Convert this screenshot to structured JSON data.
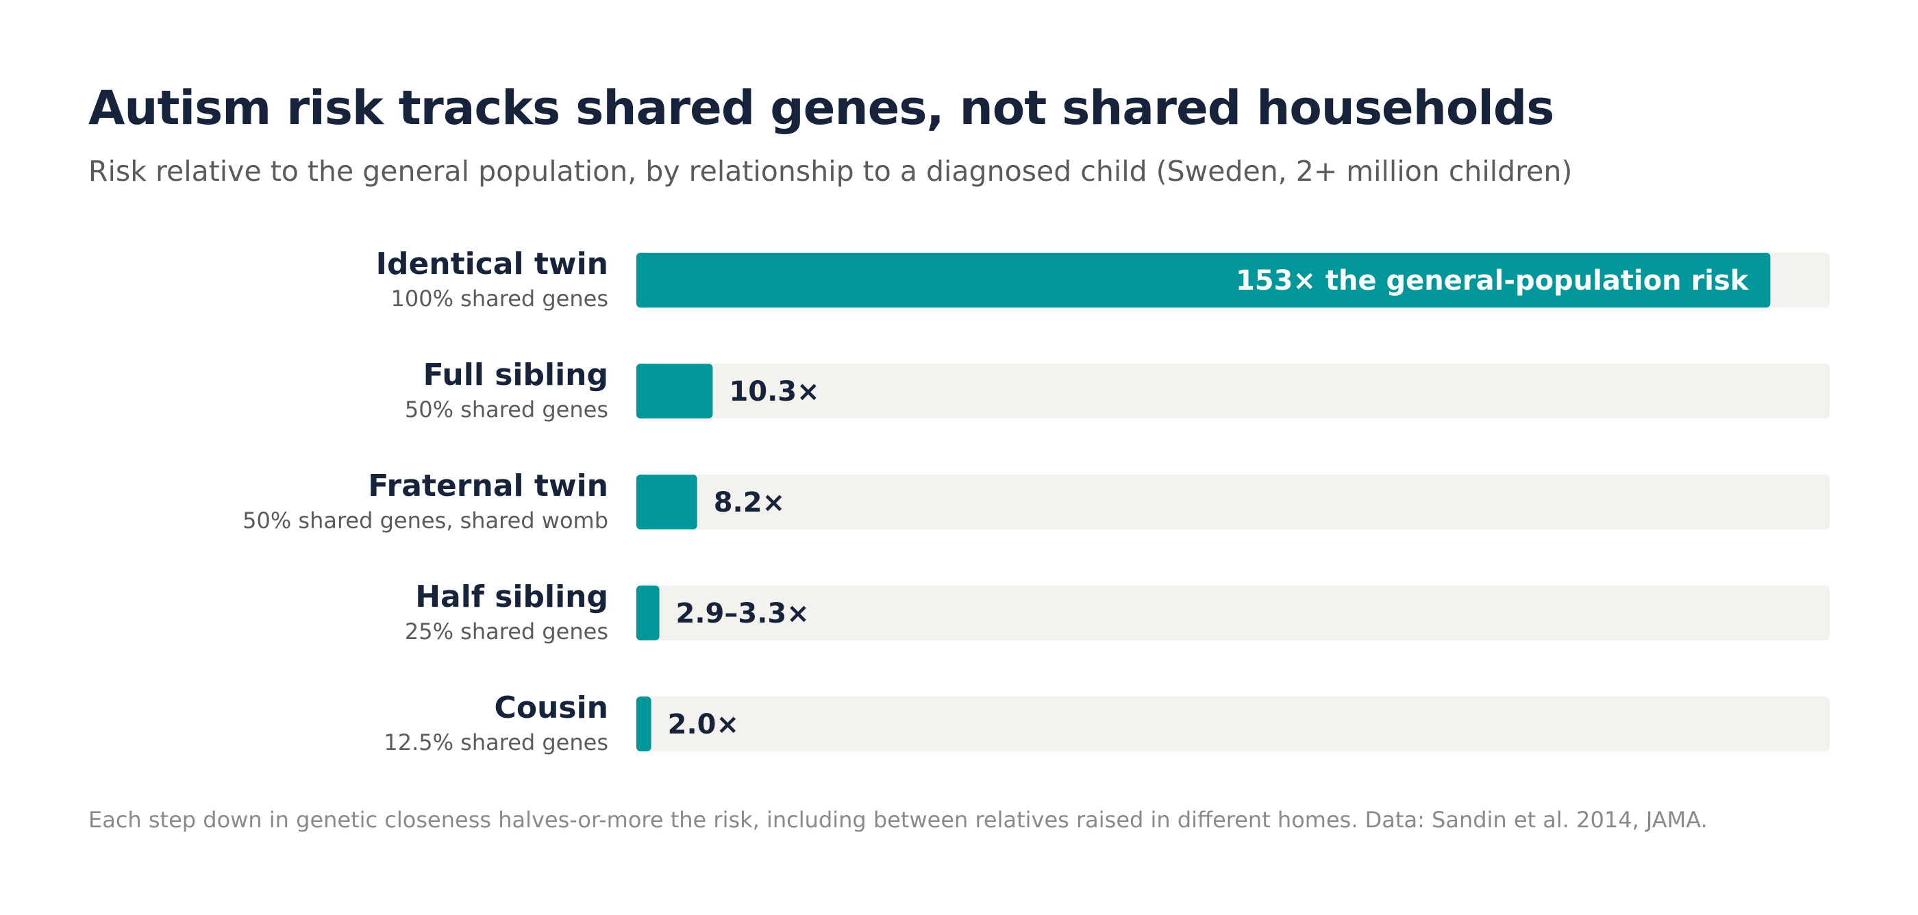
{
  "title": "Autism risk tracks shared genes, not shared households",
  "subtitle": "Risk relative to the general population, by relationship to a diagnosed child (Sweden, 2+ million children)",
  "footnote": "Each step down in genetic closeness halves-or-more the risk, including between relatives raised in different homes. Data: Sandin et al. 2014, JAMA.",
  "colors": {
    "bar": "#00969a",
    "track": "#f3f2ee",
    "label_dark": "#17223b",
    "label_muted": "#5b5b5b",
    "inside_label": "#ffffff"
  },
  "chart_data": {
    "type": "bar",
    "orientation": "horizontal",
    "categories": [
      "Identical twin",
      "Full sibling",
      "Fraternal twin",
      "Half sibling",
      "Cousin"
    ],
    "sublabels": [
      "100% shared genes",
      "50% shared genes",
      "50% shared genes, shared womb",
      "25% shared genes",
      "12.5% shared genes"
    ],
    "values": [
      153,
      10.3,
      8.2,
      3.1,
      2.0
    ],
    "value_labels": [
      "153× the general-population risk",
      "10.3×",
      "8.2×",
      "2.9–3.3×",
      "2.0×"
    ],
    "xlim": [
      0,
      161
    ],
    "grid": false,
    "legend": "none"
  }
}
